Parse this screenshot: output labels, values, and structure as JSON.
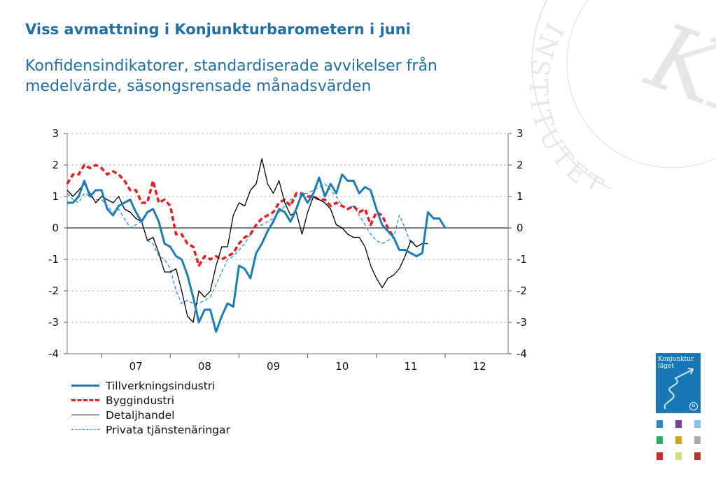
{
  "page": {
    "title": "Viss avmattning i Konjunkturbarometern i juni",
    "subtitle_line1": "Konfidensindikatorer, standardiserade avvikelser från",
    "subtitle_line2": "medelvärde, säsongsrensade månadsvärden"
  },
  "watermark": {
    "letters": "INSTITUTET",
    "monogram": "KI",
    "color": "#e6e6e6"
  },
  "cover": {
    "title_line1": "Konjunktur",
    "title_line2": "läget",
    "logo": "KI",
    "color": "#1877b5"
  },
  "thumbnails": {
    "colors": [
      "#2e86c1",
      "#7d3c98",
      "#85c1e9",
      "#27ae60",
      "#c9a227",
      "#a6acaf",
      "#cb2c30",
      "#c5e17a",
      "#b03a2e"
    ]
  },
  "chart_data": {
    "type": "line",
    "title": "",
    "xlabel": "",
    "ylabel": "",
    "x_start": "2006-07",
    "x_end": "2012-12",
    "x_ticks": [
      "07",
      "08",
      "09",
      "10",
      "11",
      "12"
    ],
    "ylim": [
      -4,
      3
    ],
    "y_ticks": [
      3,
      2,
      1,
      0,
      -1,
      -2,
      -3,
      -4
    ],
    "y_tick_labels": [
      "3",
      "2",
      "1",
      "0",
      "-1",
      "-2",
      "-3",
      "-4"
    ],
    "secondary_y_axis": true,
    "grid": "horizontal-dashed",
    "legend_position": "below",
    "series": [
      {
        "name": "Tillverkningsindustri",
        "color": "#1a7db8",
        "style": "solid-thick",
        "x": [
          "2006-07",
          "2006-08",
          "2006-09",
          "2006-10",
          "2006-11",
          "2006-12",
          "2007-01",
          "2007-02",
          "2007-03",
          "2007-04",
          "2007-05",
          "2007-06",
          "2007-07",
          "2007-08",
          "2007-09",
          "2007-10",
          "2007-11",
          "2007-12",
          "2008-01",
          "2008-02",
          "2008-03",
          "2008-04",
          "2008-05",
          "2008-06",
          "2008-07",
          "2008-08",
          "2008-09",
          "2008-10",
          "2008-11",
          "2008-12",
          "2009-01",
          "2009-02",
          "2009-03",
          "2009-04",
          "2009-05",
          "2009-06",
          "2009-07",
          "2009-08",
          "2009-09",
          "2009-10",
          "2009-11",
          "2009-12",
          "2010-01",
          "2010-02",
          "2010-03",
          "2010-04",
          "2010-05",
          "2010-06",
          "2010-07",
          "2010-08",
          "2010-09",
          "2010-10",
          "2010-11",
          "2010-12",
          "2011-01",
          "2011-02",
          "2011-03",
          "2011-04",
          "2011-05",
          "2011-06",
          "2011-07",
          "2011-08",
          "2011-09",
          "2011-10",
          "2011-11",
          "2011-12",
          "2012-01",
          "2012-02",
          "2012-03",
          "2012-04",
          "2012-05",
          "2012-06"
        ],
        "values": [
          0.8,
          0.8,
          1.0,
          1.5,
          1.0,
          1.2,
          1.2,
          0.6,
          0.4,
          0.7,
          0.8,
          0.9,
          0.5,
          0.2,
          0.5,
          0.6,
          0.2,
          -0.5,
          -0.6,
          -0.9,
          -1.0,
          -1.5,
          -2.2,
          -3.0,
          -2.6,
          -2.6,
          -3.3,
          -2.8,
          -2.4,
          -2.5,
          -1.2,
          -1.3,
          -1.6,
          -0.8,
          -0.5,
          -0.1,
          0.2,
          0.6,
          0.5,
          0.2,
          0.6,
          1.1,
          0.8,
          1.1,
          1.6,
          1.0,
          1.4,
          1.1,
          1.7,
          1.5,
          1.5,
          1.1,
          1.3,
          1.2,
          0.6,
          0.1,
          -0.1,
          -0.3,
          -0.7,
          -0.7,
          -0.8,
          -0.9,
          -0.8,
          0.5,
          0.3,
          0.3,
          0.0,
          null,
          null,
          null,
          null,
          null
        ]
      },
      {
        "name": "Byggindustri",
        "color": "#e31e24",
        "style": "dashed-thick",
        "x": [
          "2006-07",
          "2006-08",
          "2006-09",
          "2006-10",
          "2006-11",
          "2006-12",
          "2007-01",
          "2007-02",
          "2007-03",
          "2007-04",
          "2007-05",
          "2007-06",
          "2007-07",
          "2007-08",
          "2007-09",
          "2007-10",
          "2007-11",
          "2007-12",
          "2008-01",
          "2008-02",
          "2008-03",
          "2008-04",
          "2008-05",
          "2008-06",
          "2008-07",
          "2008-08",
          "2008-09",
          "2008-10",
          "2008-11",
          "2008-12",
          "2009-01",
          "2009-02",
          "2009-03",
          "2009-04",
          "2009-05",
          "2009-06",
          "2009-07",
          "2009-08",
          "2009-09",
          "2009-10",
          "2009-11",
          "2009-12",
          "2010-01",
          "2010-02",
          "2010-03",
          "2010-04",
          "2010-05",
          "2010-06",
          "2010-07",
          "2010-08",
          "2010-09",
          "2010-10",
          "2010-11",
          "2010-12",
          "2011-01",
          "2011-02",
          "2011-03",
          "2011-04",
          "2011-05",
          "2011-06",
          "2011-07",
          "2011-08",
          "2011-09",
          "2011-10",
          "2011-11",
          "2011-12",
          "2012-01",
          "2012-02",
          "2012-03",
          "2012-04",
          "2012-05",
          "2012-06"
        ],
        "values": [
          1.4,
          1.7,
          1.7,
          2.0,
          1.9,
          2.0,
          1.9,
          1.7,
          1.8,
          1.7,
          1.5,
          1.2,
          1.2,
          0.8,
          0.8,
          1.5,
          0.8,
          0.9,
          0.7,
          -0.2,
          -0.2,
          -0.5,
          -0.6,
          -1.2,
          -0.9,
          -1.0,
          -0.9,
          -1.0,
          -0.9,
          -0.8,
          -0.5,
          -0.3,
          -0.2,
          0.1,
          0.3,
          0.4,
          0.5,
          0.8,
          0.9,
          0.7,
          1.1,
          1.1,
          1.0,
          1.0,
          0.9,
          0.9,
          0.7,
          0.8,
          0.7,
          0.6,
          0.7,
          0.5,
          0.6,
          0.1,
          0.5,
          0.4,
          0.0,
          -0.3,
          null,
          null,
          null,
          null,
          null,
          null,
          null,
          null,
          null,
          null,
          null,
          null,
          null,
          null
        ]
      },
      {
        "name": "Detaljhandel",
        "color": "#000000",
        "style": "solid-thin",
        "x": [
          "2006-07",
          "2006-08",
          "2006-09",
          "2006-10",
          "2006-11",
          "2006-12",
          "2007-01",
          "2007-02",
          "2007-03",
          "2007-04",
          "2007-05",
          "2007-06",
          "2007-07",
          "2007-08",
          "2007-09",
          "2007-10",
          "2007-11",
          "2007-12",
          "2008-01",
          "2008-02",
          "2008-03",
          "2008-04",
          "2008-05",
          "2008-06",
          "2008-07",
          "2008-08",
          "2008-09",
          "2008-10",
          "2008-11",
          "2008-12",
          "2009-01",
          "2009-02",
          "2009-03",
          "2009-04",
          "2009-05",
          "2009-06",
          "2009-07",
          "2009-08",
          "2009-09",
          "2009-10",
          "2009-11",
          "2009-12",
          "2010-01",
          "2010-02",
          "2010-03",
          "2010-04",
          "2010-05",
          "2010-06",
          "2010-07",
          "2010-08",
          "2010-09",
          "2010-10",
          "2010-11",
          "2010-12",
          "2011-01",
          "2011-02",
          "2011-03",
          "2011-04",
          "2011-05",
          "2011-06",
          "2011-07",
          "2011-08",
          "2011-09",
          "2011-10",
          "2011-11",
          "2011-12",
          "2012-01",
          "2012-02",
          "2012-03",
          "2012-04",
          "2012-05",
          "2012-06"
        ],
        "values": [
          1.2,
          1.0,
          1.2,
          1.4,
          1.1,
          0.8,
          1.0,
          0.9,
          0.8,
          1.0,
          0.6,
          0.5,
          0.3,
          0.2,
          -0.4,
          -0.3,
          -0.8,
          -1.4,
          -1.4,
          -1.3,
          -2.0,
          -2.8,
          -3.0,
          -2.0,
          -2.2,
          -2.0,
          -1.2,
          -0.6,
          -0.6,
          0.4,
          0.8,
          0.7,
          1.2,
          1.4,
          2.2,
          1.4,
          1.1,
          1.5,
          0.8,
          0.4,
          0.5,
          -0.2,
          0.5,
          1.0,
          0.9,
          0.8,
          0.6,
          0.1,
          0.0,
          -0.2,
          -0.3,
          -0.3,
          -0.6,
          -1.2,
          -1.6,
          -1.9,
          -1.6,
          -1.5,
          -1.3,
          -0.9,
          -0.4,
          -0.6,
          -0.5,
          -0.5,
          null,
          null,
          null,
          null,
          null,
          null,
          null,
          null
        ]
      },
      {
        "name": "Privata tjänstenäringar",
        "color": "#2f93c9",
        "style": "dashed-thin",
        "x": [
          "2006-07",
          "2006-08",
          "2006-09",
          "2006-10",
          "2006-11",
          "2006-12",
          "2007-01",
          "2007-02",
          "2007-03",
          "2007-04",
          "2007-05",
          "2007-06",
          "2007-07",
          "2007-08",
          "2007-09",
          "2007-10",
          "2007-11",
          "2007-12",
          "2008-01",
          "2008-02",
          "2008-03",
          "2008-04",
          "2008-05",
          "2008-06",
          "2008-07",
          "2008-08",
          "2008-09",
          "2008-10",
          "2008-11",
          "2008-12",
          "2009-01",
          "2009-02",
          "2009-03",
          "2009-04",
          "2009-05",
          "2009-06",
          "2009-07",
          "2009-08",
          "2009-09",
          "2009-10",
          "2009-11",
          "2009-12",
          "2010-01",
          "2010-02",
          "2010-03",
          "2010-04",
          "2010-05",
          "2010-06",
          "2010-07",
          "2010-08",
          "2010-09",
          "2010-10",
          "2010-11",
          "2010-12",
          "2011-01",
          "2011-02",
          "2011-03",
          "2011-04",
          "2011-05",
          "2011-06",
          "2011-07",
          "2011-08",
          "2011-09",
          "2011-10",
          "2011-11",
          "2011-12",
          "2012-01",
          "2012-02",
          "2012-03",
          "2012-04",
          "2012-05",
          "2012-06"
        ],
        "values": [
          1.1,
          0.9,
          0.8,
          1.1,
          1.0,
          0.9,
          0.9,
          0.7,
          0.5,
          0.6,
          0.3,
          0.0,
          0.1,
          0.2,
          -0.4,
          -0.5,
          -0.9,
          -1.0,
          -1.3,
          -2.0,
          -2.4,
          -2.3,
          -2.4,
          -2.4,
          -2.3,
          -2.2,
          -1.8,
          -1.4,
          -1.0,
          -0.9,
          -0.7,
          -0.5,
          -0.2,
          0.0,
          0.1,
          0.2,
          0.3,
          0.5,
          0.7,
          0.9,
          1.0,
          1.1,
          1.1,
          1.2,
          1.3,
          1.4,
          1.2,
          1.0,
          0.7,
          0.6,
          0.7,
          0.4,
          0.1,
          -0.2,
          -0.4,
          -0.5,
          -0.4,
          -0.3,
          0.4,
          0.0,
          -0.5,
          -0.4,
          null,
          null,
          null,
          null,
          null,
          null,
          null,
          null,
          null,
          null
        ]
      }
    ]
  }
}
